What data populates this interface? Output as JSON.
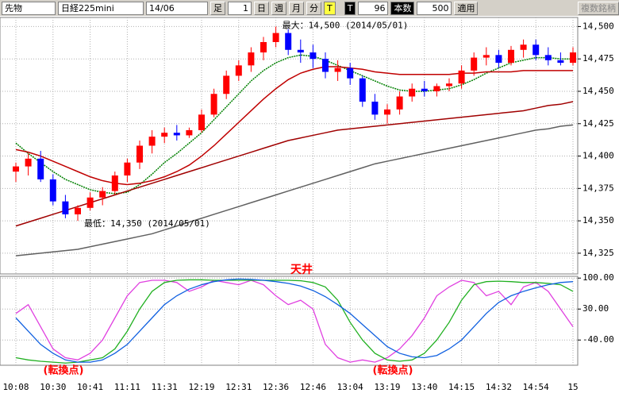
{
  "toolbar": {
    "market": "先物",
    "symbol": "日経225mini",
    "contract": "14/06",
    "bar_label": "足",
    "bar_value": "1",
    "periods": [
      "日",
      "週",
      "月",
      "分",
      "T"
    ],
    "tick_button": "T",
    "count_value": "96",
    "count_label": "本数",
    "bars_value": "500",
    "apply": "適用",
    "multi": "複数銘柄"
  },
  "chart_data": [
    {
      "type": "candlestick",
      "up_color": "#ff0000",
      "down_color": "#0000ff",
      "categories": [
        "10:08",
        null,
        null,
        "10:30",
        null,
        null,
        "10:41",
        null,
        null,
        "11:11",
        null,
        null,
        "11:31",
        null,
        null,
        "12:19",
        null,
        null,
        "12:31",
        null,
        null,
        "12:36",
        null,
        null,
        "12:46",
        null,
        null,
        "13:04",
        null,
        null,
        "13:19",
        null,
        null,
        "13:40",
        null,
        null,
        "14:15",
        null,
        null,
        "14:32",
        null,
        null,
        "14:54",
        null,
        null,
        "15"
      ],
      "ohlc": [
        [
          14388,
          14395,
          14380,
          14392
        ],
        [
          14392,
          14402,
          14385,
          14398
        ],
        [
          14398,
          14404,
          14380,
          14382
        ],
        [
          14382,
          14386,
          14362,
          14365
        ],
        [
          14365,
          14370,
          14352,
          14355
        ],
        [
          14355,
          14362,
          14350,
          14360
        ],
        [
          14360,
          14372,
          14358,
          14368
        ],
        [
          14368,
          14376,
          14362,
          14373
        ],
        [
          14373,
          14388,
          14370,
          14385
        ],
        [
          14385,
          14398,
          14380,
          14395
        ],
        [
          14395,
          14412,
          14390,
          14408
        ],
        [
          14408,
          14420,
          14402,
          14415
        ],
        [
          14415,
          14422,
          14410,
          14418
        ],
        [
          14418,
          14424,
          14412,
          14416
        ],
        [
          14416,
          14422,
          14414,
          14420
        ],
        [
          14420,
          14436,
          14418,
          14432
        ],
        [
          14432,
          14452,
          14430,
          14448
        ],
        [
          14448,
          14466,
          14444,
          14462
        ],
        [
          14462,
          14474,
          14458,
          14470
        ],
        [
          14470,
          14484,
          14465,
          14480
        ],
        [
          14480,
          14492,
          14474,
          14488
        ],
        [
          14488,
          14500,
          14484,
          14495
        ],
        [
          14495,
          14498,
          14478,
          14482
        ],
        [
          14482,
          14490,
          14472,
          14480
        ],
        [
          14480,
          14486,
          14468,
          14475
        ],
        [
          14475,
          14480,
          14460,
          14465
        ],
        [
          14465,
          14474,
          14458,
          14468
        ],
        [
          14468,
          14472,
          14455,
          14460
        ],
        [
          14460,
          14462,
          14438,
          14442
        ],
        [
          14442,
          14448,
          14428,
          14432
        ],
        [
          14432,
          14440,
          14425,
          14436
        ],
        [
          14436,
          14450,
          14432,
          14446
        ],
        [
          14446,
          14456,
          14442,
          14452
        ],
        [
          14452,
          14458,
          14446,
          14450
        ],
        [
          14450,
          14456,
          14446,
          14454
        ],
        [
          14454,
          14460,
          14450,
          14456
        ],
        [
          14456,
          14470,
          14452,
          14466
        ],
        [
          14466,
          14480,
          14462,
          14476
        ],
        [
          14476,
          14484,
          14470,
          14478
        ],
        [
          14478,
          14482,
          14468,
          14472
        ],
        [
          14472,
          14485,
          14470,
          14482
        ],
        [
          14482,
          14490,
          14476,
          14486
        ],
        [
          14486,
          14490,
          14474,
          14478
        ],
        [
          14478,
          14484,
          14470,
          14474
        ],
        [
          14474,
          14480,
          14470,
          14472
        ],
        [
          14472,
          14484,
          14470,
          14480
        ]
      ],
      "lines": [
        {
          "color": "#008000",
          "style": "dotted",
          "values": [
            14410,
            14402,
            14395,
            14388,
            14382,
            14378,
            14374,
            14372,
            14371,
            14372,
            14378,
            14386,
            14395,
            14402,
            14410,
            14418,
            14428,
            14438,
            14448,
            14458,
            14466,
            14472,
            14476,
            14478,
            14477,
            14474,
            14470,
            14466,
            14462,
            14458,
            14454,
            14451,
            14450,
            14450,
            14451,
            14452,
            14455,
            14459,
            14464,
            14468,
            14472,
            14474,
            14476,
            14476,
            14475,
            14475
          ]
        },
        {
          "color": "#c00000",
          "style": "solid",
          "values": [
            14405,
            14403,
            14400,
            14396,
            14392,
            14388,
            14384,
            14381,
            14379,
            14378,
            14379,
            14381,
            14384,
            14388,
            14393,
            14400,
            14408,
            14417,
            14426,
            14435,
            14444,
            14452,
            14459,
            14464,
            14467,
            14469,
            14469,
            14468,
            14467,
            14465,
            14464,
            14463,
            14463,
            14463,
            14463,
            14463,
            14464,
            14464,
            14465,
            14465,
            14465,
            14466,
            14466,
            14466,
            14466,
            14466
          ]
        },
        {
          "color": "#a00000",
          "style": "solid",
          "values": [
            14346,
            14349,
            14352,
            14355,
            14358,
            14361,
            14364,
            14367,
            14370,
            14373,
            14376,
            14379,
            14382,
            14385,
            14388,
            14391,
            14394,
            14397,
            14400,
            14403,
            14406,
            14409,
            14412,
            14414,
            14416,
            14418,
            14420,
            14421,
            14422,
            14423,
            14424,
            14425,
            14426,
            14427,
            14428,
            14429,
            14430,
            14431,
            14432,
            14433,
            14434,
            14435,
            14437,
            14439,
            14440,
            14442
          ]
        },
        {
          "color": "#606060",
          "style": "solid",
          "values": [
            14323,
            14324,
            14325,
            14326,
            14327,
            14328,
            14330,
            14332,
            14334,
            14336,
            14338,
            14340,
            14343,
            14346,
            14349,
            14352,
            14355,
            14358,
            14361,
            14364,
            14367,
            14370,
            14373,
            14376,
            14379,
            14382,
            14385,
            14388,
            14391,
            14394,
            14396,
            14398,
            14400,
            14402,
            14404,
            14406,
            14408,
            14410,
            14412,
            14414,
            14416,
            14418,
            14420,
            14421,
            14423,
            14424
          ]
        }
      ],
      "ylim": [
        14309,
        14507
      ],
      "yticks": [
        {
          "value": 14325,
          "label": "14,325"
        },
        {
          "value": 14350,
          "label": "14,350"
        },
        {
          "value": 14375,
          "label": "14,375"
        },
        {
          "value": 14400,
          "label": "14,400"
        },
        {
          "value": 14425,
          "label": "14,425"
        },
        {
          "value": 14450,
          "label": "14,450"
        },
        {
          "value": 14475,
          "label": "14,475"
        },
        {
          "value": 14500,
          "label": "14,500"
        }
      ],
      "max_label": "最大：14,500 (2014/05/01)",
      "min_label": "最低：14,350 (2014/05/01)"
    },
    {
      "type": "line",
      "series": [
        {
          "color": "#e040e0",
          "values": [
            20,
            40,
            -10,
            -60,
            -80,
            -85,
            -70,
            -40,
            10,
            60,
            90,
            95,
            95,
            90,
            70,
            80,
            95,
            90,
            85,
            95,
            85,
            60,
            40,
            50,
            30,
            -50,
            -80,
            -90,
            -85,
            -90,
            -80,
            -60,
            -30,
            10,
            60,
            80,
            95,
            90,
            60,
            70,
            40,
            80,
            90,
            70,
            30,
            -10
          ]
        },
        {
          "color": "#20b020",
          "values": [
            -80,
            -85,
            -88,
            -90,
            -92,
            -90,
            -85,
            -80,
            -60,
            -20,
            30,
            70,
            90,
            95,
            96,
            96,
            95,
            95,
            95,
            95,
            95,
            95,
            95,
            94,
            90,
            80,
            50,
            0,
            -40,
            -70,
            -85,
            -88,
            -85,
            -70,
            -40,
            0,
            50,
            85,
            92,
            93,
            92,
            90,
            90,
            88,
            85,
            70
          ]
        },
        {
          "color": "#1060e0",
          "values": [
            10,
            -20,
            -50,
            -70,
            -85,
            -90,
            -90,
            -85,
            -70,
            -50,
            -20,
            10,
            40,
            60,
            75,
            85,
            92,
            96,
            98,
            97,
            95,
            92,
            88,
            82,
            72,
            58,
            40,
            20,
            -5,
            -30,
            -55,
            -70,
            -78,
            -80,
            -75,
            -60,
            -40,
            -10,
            20,
            45,
            60,
            70,
            78,
            85,
            90,
            92
          ]
        }
      ],
      "ylim": [
        -97,
        104
      ],
      "yticks": [
        {
          "value": 100,
          "label": "100.00"
        },
        {
          "value": 30,
          "label": "30.00"
        },
        {
          "value": -40,
          "label": "-40.00"
        }
      ],
      "peak_label": "天井",
      "turn_labels": [
        "(転換点)",
        "(転換点)"
      ]
    }
  ]
}
